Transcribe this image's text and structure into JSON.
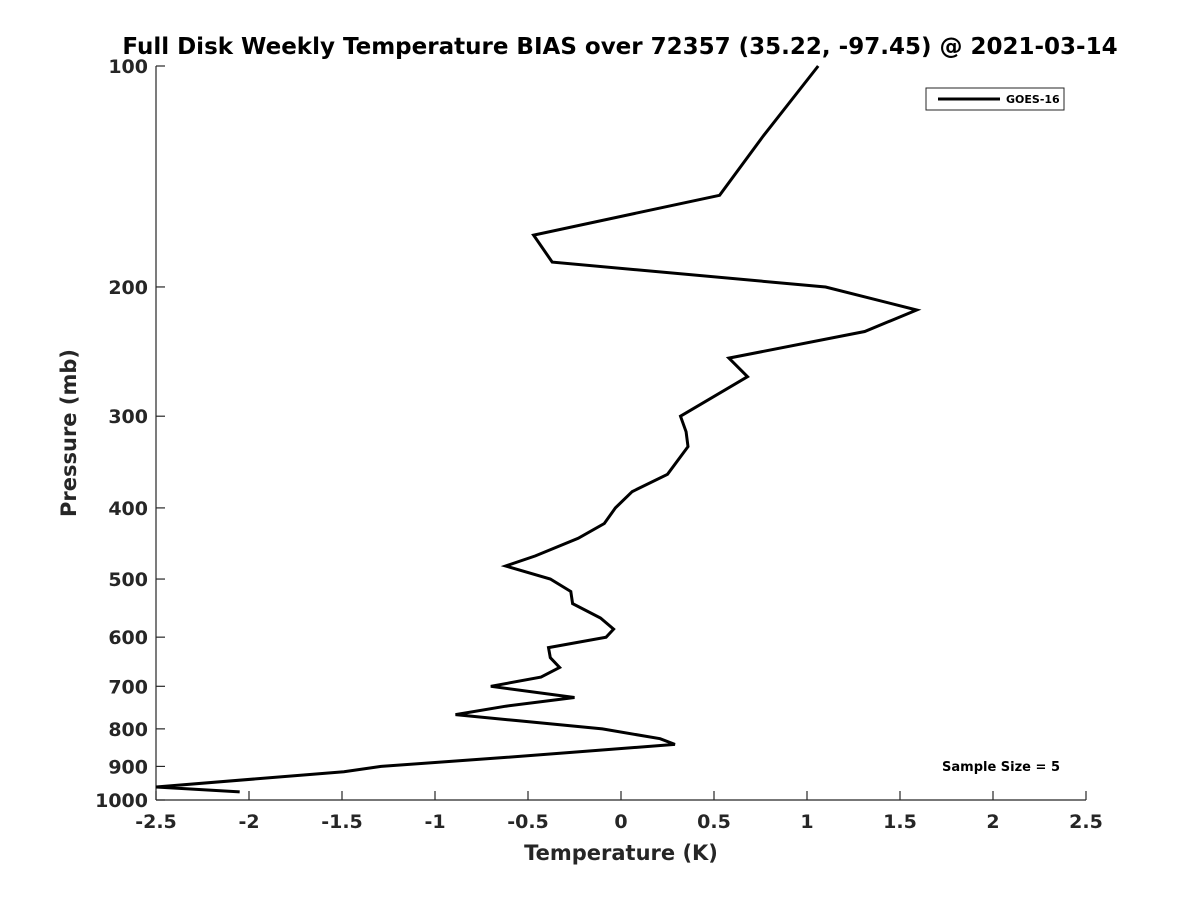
{
  "chart_data": {
    "type": "line",
    "title": "Full Disk Weekly Temperature BIAS over 72357 (35.22, -97.45) @ 2021-03-14",
    "xlabel": "Temperature (K)",
    "ylabel": "Pressure (mb)",
    "xlim": [
      -2.5,
      2.5
    ],
    "ylim": [
      100,
      1000
    ],
    "y_scale": "log",
    "y_reversed": true,
    "x_ticks": [
      "-2.5",
      "-2",
      "-1.5",
      "-1",
      "-0.5",
      "0",
      "0.5",
      "1",
      "1.5",
      "2",
      "2.5"
    ],
    "x_tick_values": [
      -2.5,
      -2,
      -1.5,
      -1,
      -0.5,
      0,
      0.5,
      1,
      1.5,
      2,
      2.5
    ],
    "y_ticks": [
      "100",
      "200",
      "300",
      "400",
      "500",
      "600",
      "700",
      "800",
      "900",
      "1000"
    ],
    "y_tick_values": [
      100,
      200,
      300,
      400,
      500,
      600,
      700,
      800,
      900,
      1000
    ],
    "grid": false,
    "legend_position": "top-right",
    "series": [
      {
        "name": "GOES-16",
        "color": "#000000",
        "points": [
          {
            "x": 1.06,
            "p": 100
          },
          {
            "x": 0.76,
            "p": 125
          },
          {
            "x": 0.53,
            "p": 150
          },
          {
            "x": -0.47,
            "p": 170
          },
          {
            "x": -0.37,
            "p": 185
          },
          {
            "x": 1.1,
            "p": 200
          },
          {
            "x": 1.59,
            "p": 215
          },
          {
            "x": 1.31,
            "p": 230
          },
          {
            "x": 0.58,
            "p": 250
          },
          {
            "x": 0.68,
            "p": 265
          },
          {
            "x": 0.32,
            "p": 300
          },
          {
            "x": 0.35,
            "p": 315
          },
          {
            "x": 0.36,
            "p": 330
          },
          {
            "x": 0.25,
            "p": 360
          },
          {
            "x": 0.06,
            "p": 380
          },
          {
            "x": -0.03,
            "p": 400
          },
          {
            "x": -0.09,
            "p": 420
          },
          {
            "x": -0.23,
            "p": 440
          },
          {
            "x": -0.46,
            "p": 465
          },
          {
            "x": -0.62,
            "p": 480
          },
          {
            "x": -0.38,
            "p": 500
          },
          {
            "x": -0.27,
            "p": 520
          },
          {
            "x": -0.26,
            "p": 540
          },
          {
            "x": -0.11,
            "p": 565
          },
          {
            "x": -0.04,
            "p": 585
          },
          {
            "x": -0.08,
            "p": 600
          },
          {
            "x": -0.39,
            "p": 620
          },
          {
            "x": -0.38,
            "p": 640
          },
          {
            "x": -0.33,
            "p": 660
          },
          {
            "x": -0.43,
            "p": 680
          },
          {
            "x": -0.7,
            "p": 700
          },
          {
            "x": -0.25,
            "p": 725
          },
          {
            "x": -0.62,
            "p": 745
          },
          {
            "x": -0.89,
            "p": 765
          },
          {
            "x": -0.55,
            "p": 780
          },
          {
            "x": -0.1,
            "p": 800
          },
          {
            "x": 0.21,
            "p": 825
          },
          {
            "x": 0.29,
            "p": 840
          },
          {
            "x": -0.11,
            "p": 855
          },
          {
            "x": -0.62,
            "p": 875
          },
          {
            "x": -1.29,
            "p": 900
          },
          {
            "x": -1.49,
            "p": 915
          },
          {
            "x": -2.5,
            "p": 960
          },
          {
            "x": -2.05,
            "p": 975
          }
        ]
      }
    ],
    "annotations": [
      {
        "text": "Sample Size = 5",
        "position": "bottom-right"
      }
    ]
  }
}
